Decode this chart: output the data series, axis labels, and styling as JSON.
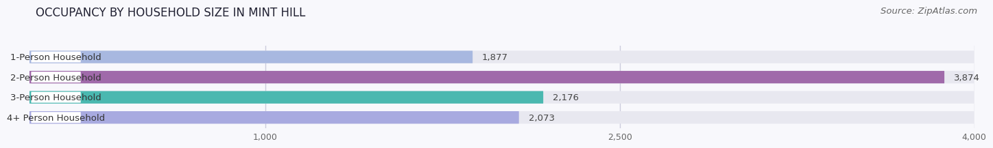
{
  "title": "OCCUPANCY BY HOUSEHOLD SIZE IN MINT HILL",
  "source": "Source: ZipAtlas.com",
  "categories": [
    "1-Person Household",
    "2-Person Household",
    "3-Person Household",
    "4+ Person Household"
  ],
  "values": [
    1877,
    3874,
    2176,
    2073
  ],
  "bar_colors": [
    "#a8b8e0",
    "#a06aaa",
    "#4ab8b0",
    "#a8aae0"
  ],
  "bar_bg_color": "#e8e8f0",
  "label_bg_color": "#ffffff",
  "xlim": [
    0,
    4000
  ],
  "xticks": [
    1000,
    2500,
    4000
  ],
  "title_fontsize": 12,
  "label_fontsize": 9.5,
  "value_fontsize": 9.5,
  "source_fontsize": 9.5,
  "bar_height": 0.62,
  "background_color": "#f8f8fc",
  "label_text_color": "#333333",
  "value_text_color": "#444444",
  "grid_color": "#ccccdd"
}
